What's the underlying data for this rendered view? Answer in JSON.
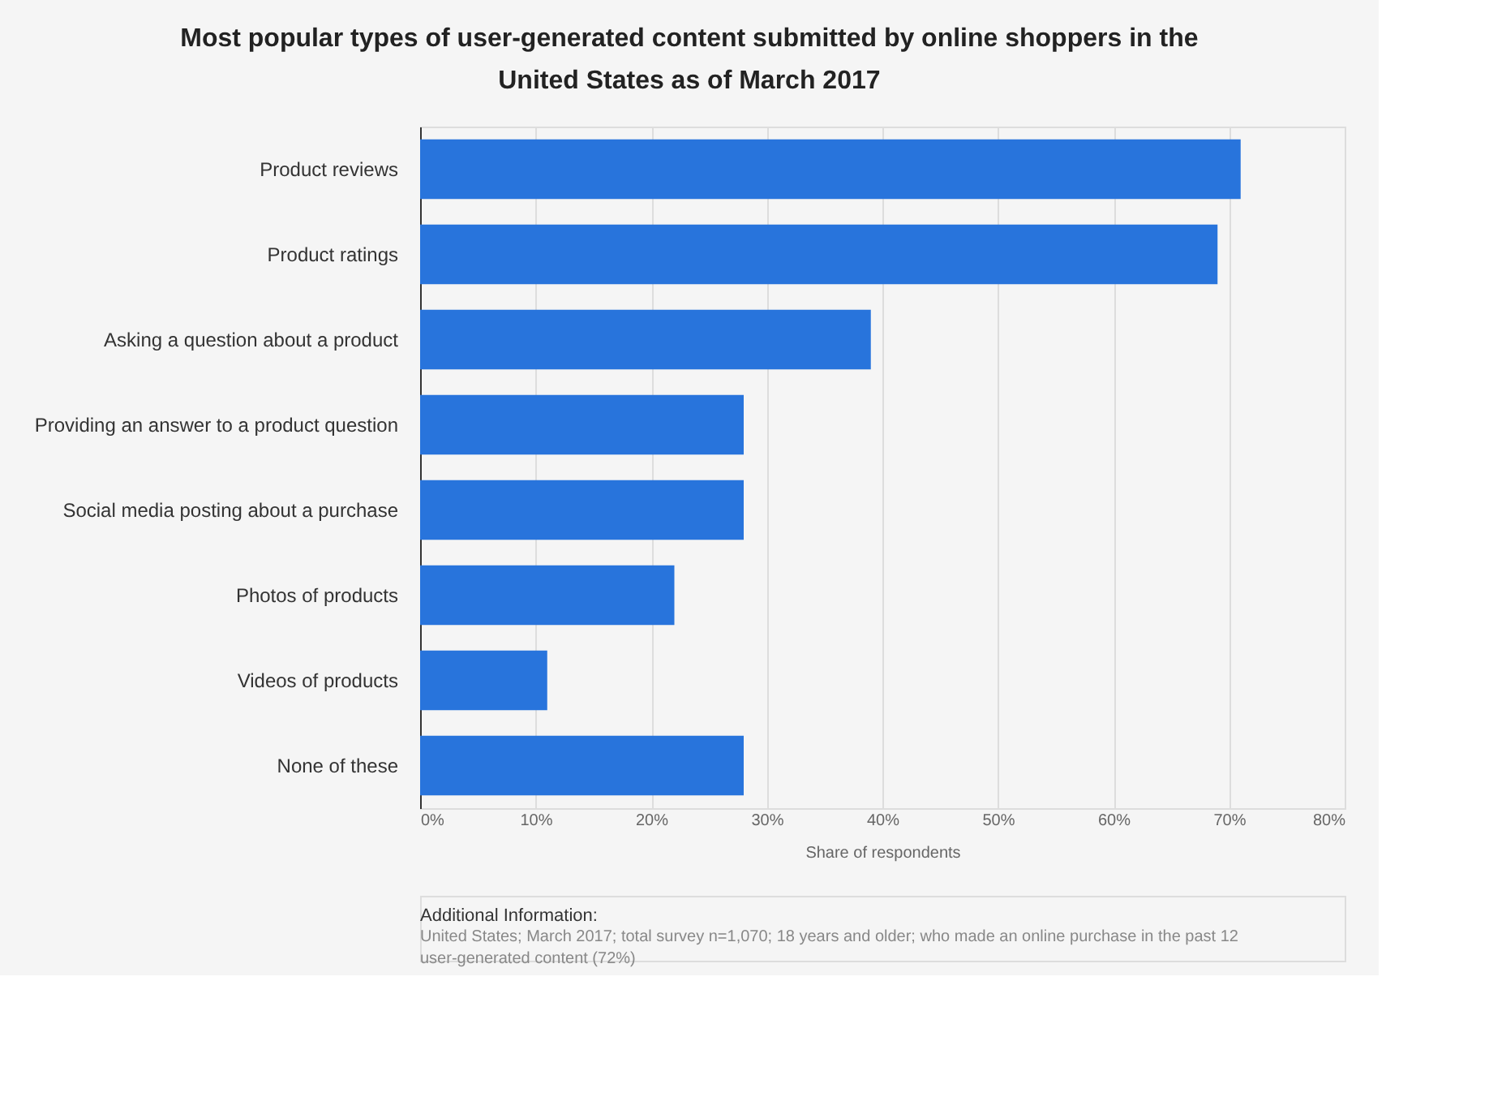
{
  "chart_data": {
    "type": "bar",
    "orientation": "horizontal",
    "title": "Most popular types of user-generated content submitted by online shoppers in the United States as of March 2017",
    "categories": [
      "Product reviews",
      "Product ratings",
      "Asking a question about a product",
      "Providing an answer to a product question",
      "Social media posting about a purchase",
      "Photos of products",
      "Videos of products",
      "None of these"
    ],
    "values": [
      71,
      69,
      39,
      28,
      28,
      22,
      11,
      28
    ],
    "color": "#2874dc",
    "xlabel": "Share of respondents",
    "xlim": [
      0,
      80
    ],
    "xticks": [
      {
        "value": 0,
        "label": "0%"
      },
      {
        "value": 10,
        "label": "10%"
      },
      {
        "value": 20,
        "label": "20%"
      },
      {
        "value": 30,
        "label": "30%"
      },
      {
        "value": 40,
        "label": "40%"
      },
      {
        "value": 50,
        "label": "50%"
      },
      {
        "value": 60,
        "label": "60%"
      },
      {
        "value": 70,
        "label": "70%"
      },
      {
        "value": 80,
        "label": "80%"
      }
    ],
    "grid": "x",
    "annotations": [
      "Additional Information:",
      "United States; March 2017; total survey n=1,070; 18 years and older; who made an online purchase in the past 12",
      "user-generated content (72%)"
    ]
  }
}
